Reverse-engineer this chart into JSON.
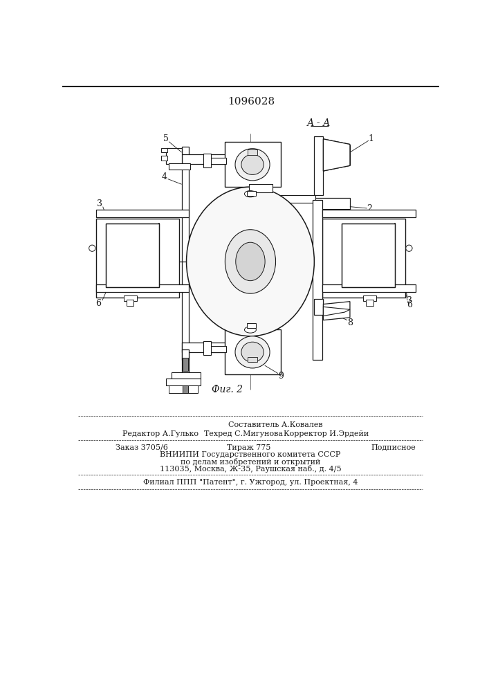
{
  "title": "1096028",
  "section_label": "А - А",
  "fig_label": "Фиг. 2",
  "editor_line": "Редактор А.Гулько",
  "composer_line1": "Составитель А.Ковалев",
  "composer_line2": "Техред С.Мигунова",
  "corrector_line": "Корректор И.Эрдейи",
  "order_line": "Заказ 3705/6",
  "tiraz_line": "Тираж 775",
  "podp_line": "Подписное",
  "vniip1": "ВНИИПИ Государственного комитета СССР",
  "vniip2": "по делам изобретений и открытий",
  "vniip3": "113035, Москва, Ж-35, Раушская наб., д. 4/5",
  "filial": "Филиал ППП \"Патент\", г. Ужгород, ул. Проектная, 4",
  "bg_color": "#ffffff",
  "line_color": "#1a1a1a"
}
